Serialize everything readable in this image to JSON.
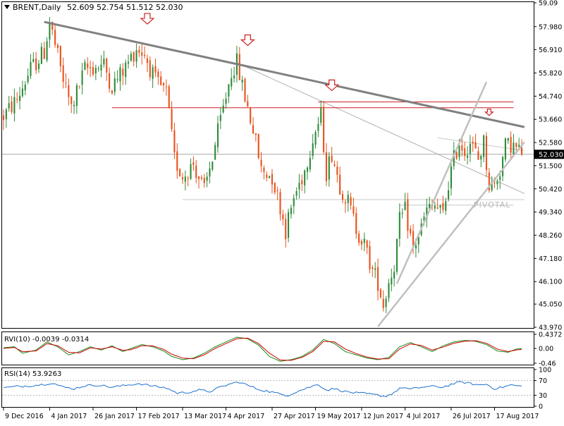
{
  "main_header": {
    "symbol": "BRENT,Daily",
    "ohlc": "52.609 52.754 51.512 52.030"
  },
  "rvi_header": "RVI(10) -0.0039 -0.0314",
  "rsi_header": "RSI(14) 53.9263",
  "price_label": "52.030",
  "pivot_label": "PIVOTAL",
  "colors": {
    "bull": "#2e8b3a",
    "bear": "#e8521c",
    "trendline": "#808080",
    "resistance": "#cc2222",
    "channel": "#c0c0c0",
    "rsi_line": "#1e6fcf",
    "rvi_main": "#1a8c1a",
    "rvi_signal": "#cc0000",
    "arrow": "#cc2222"
  },
  "chart_data": [
    {
      "type": "candlestick",
      "name": "main",
      "title": "BRENT,Daily",
      "ylim": [
        43.97,
        59.09
      ],
      "yticks": [
        59.09,
        57.98,
        56.91,
        55.82,
        54.74,
        53.66,
        52.58,
        51.5,
        50.42,
        49.34,
        48.26,
        47.18,
        46.1,
        45.05,
        43.97
      ],
      "ytick_labels": [
        "59.09",
        "57.980",
        "56.910",
        "55.820",
        "54.740",
        "53.660",
        "52.580",
        "51.500",
        "50.420",
        "49.340",
        "48.260",
        "47.180",
        "46.100",
        "45.050",
        "43.970"
      ],
      "current_price": 52.03,
      "x_labels": [
        "9 Dec 2016",
        "4 Jan 2017",
        "26 Jan 2017",
        "17 Feb 2017",
        "13 Mar 2017",
        "4 Apr 2017",
        "27 Apr 2017",
        "19 May 2017",
        "12 Jun 2017",
        "4 Jul 2017",
        "26 Jul 2017",
        "17 Aug 2017"
      ],
      "x_label_index": [
        0,
        17,
        33,
        49,
        66,
        82,
        99,
        115,
        132,
        148,
        165,
        181
      ],
      "n_bars": 192,
      "anchors": [
        [
          0,
          53.8
        ],
        [
          5,
          54.6
        ],
        [
          10,
          56.0
        ],
        [
          15,
          56.8
        ],
        [
          17,
          58.2
        ],
        [
          22,
          55.5
        ],
        [
          25,
          54.2
        ],
        [
          30,
          56.0
        ],
        [
          37,
          56.2
        ],
        [
          40,
          55.2
        ],
        [
          45,
          56.1
        ],
        [
          49,
          57.0
        ],
        [
          52,
          56.7
        ],
        [
          56,
          55.4
        ],
        [
          60,
          54.9
        ],
        [
          63,
          51.8
        ],
        [
          66,
          51.0
        ],
        [
          70,
          51.6
        ],
        [
          74,
          50.3
        ],
        [
          77,
          51.9
        ],
        [
          80,
          53.6
        ],
        [
          84,
          55.9
        ],
        [
          86,
          56.3
        ],
        [
          88,
          55.2
        ],
        [
          92,
          53.2
        ],
        [
          95,
          51.3
        ],
        [
          99,
          51.0
        ],
        [
          102,
          49.6
        ],
        [
          104,
          48.5
        ],
        [
          107,
          50.0
        ],
        [
          111,
          51.3
        ],
        [
          114,
          52.8
        ],
        [
          117,
          53.8
        ],
        [
          119,
          51.2
        ],
        [
          121,
          52.1
        ],
        [
          124,
          50.6
        ],
        [
          127,
          49.8
        ],
        [
          130,
          48.6
        ],
        [
          133,
          47.8
        ],
        [
          136,
          46.6
        ],
        [
          138,
          46.1
        ],
        [
          140,
          45.0
        ],
        [
          142,
          46.1
        ],
        [
          144,
          46.9
        ],
        [
          146,
          48.9
        ],
        [
          148,
          49.4
        ],
        [
          151,
          47.6
        ],
        [
          154,
          48.6
        ],
        [
          156,
          49.4
        ],
        [
          159,
          49.6
        ],
        [
          162,
          49.2
        ],
        [
          164,
          50.7
        ],
        [
          166,
          51.8
        ],
        [
          168,
          52.6
        ],
        [
          170,
          52.2
        ],
        [
          172,
          52.6
        ],
        [
          175,
          51.8
        ],
        [
          177,
          52.6
        ],
        [
          179,
          50.6
        ],
        [
          181,
          50.6
        ],
        [
          183,
          51.3
        ],
        [
          185,
          52.4
        ],
        [
          187,
          52.5
        ],
        [
          189,
          52.3
        ],
        [
          191,
          52.03
        ]
      ],
      "lines": {
        "main_trendline": {
          "from": [
            15,
            58.2
          ],
          "to": [
            192,
            53.3
          ]
        },
        "thin_trendline": {
          "from": [
            86,
            56.3
          ],
          "to": [
            192,
            50.2
          ]
        },
        "resistance_1": {
          "from": [
            40,
            54.2
          ],
          "to": [
            188,
            54.2
          ]
        },
        "resistance_2": {
          "from": [
            116,
            54.47
          ],
          "to": [
            188,
            54.47
          ]
        },
        "pivot_upper": {
          "from": [
            66,
            49.92
          ],
          "to": [
            192,
            49.92
          ]
        },
        "pivot_lower": {
          "from": [
            146,
            49.66
          ],
          "to": [
            188,
            49.66
          ]
        },
        "channel_upper": {
          "from": [
            145,
            46.0
          ],
          "to": [
            178,
            55.4
          ]
        },
        "channel_lower": {
          "from": [
            138,
            44.0
          ],
          "to": [
            192,
            52.6
          ]
        },
        "channel_mid": {
          "from": [
            160,
            52.8
          ],
          "to": [
            192,
            52.2
          ]
        }
      },
      "markers": [
        {
          "type": "down-arrow",
          "bar": 53,
          "value": 58.2
        },
        {
          "type": "down-arrow",
          "bar": 90,
          "value": 57.2
        },
        {
          "type": "down-arrow",
          "bar": 121,
          "value": 55.1
        },
        {
          "type": "down-arrow",
          "bar": 179,
          "value": 53.9
        }
      ]
    },
    {
      "type": "line",
      "name": "RVI(10)",
      "ylim": [
        -0.46,
        0.4372
      ],
      "ytick_labels": [
        "0.4372",
        "0.00",
        "-0.46"
      ],
      "yticks": [
        0.4372,
        0.0,
        -0.46
      ],
      "series": [
        {
          "name": "main",
          "anchors": [
            [
              0,
              0.02
            ],
            [
              4,
              0.05
            ],
            [
              7,
              -0.15
            ],
            [
              12,
              -0.05
            ],
            [
              16,
              0.2
            ],
            [
              20,
              0.05
            ],
            [
              24,
              -0.2
            ],
            [
              28,
              -0.1
            ],
            [
              32,
              0.05
            ],
            [
              36,
              -0.05
            ],
            [
              40,
              0.08
            ],
            [
              44,
              -0.1
            ],
            [
              47,
              0.0
            ],
            [
              51,
              0.12
            ],
            [
              55,
              0.05
            ],
            [
              59,
              -0.08
            ],
            [
              62,
              -0.25
            ],
            [
              66,
              -0.35
            ],
            [
              70,
              -0.3
            ],
            [
              74,
              -0.15
            ],
            [
              78,
              0.05
            ],
            [
              82,
              0.2
            ],
            [
              86,
              0.35
            ],
            [
              90,
              0.3
            ],
            [
              94,
              0.1
            ],
            [
              98,
              -0.25
            ],
            [
              102,
              -0.4
            ],
            [
              106,
              -0.35
            ],
            [
              110,
              -0.25
            ],
            [
              114,
              -0.05
            ],
            [
              118,
              0.28
            ],
            [
              122,
              0.15
            ],
            [
              126,
              -0.1
            ],
            [
              130,
              -0.2
            ],
            [
              134,
              -0.3
            ],
            [
              138,
              -0.35
            ],
            [
              142,
              -0.28
            ],
            [
              146,
              0.05
            ],
            [
              150,
              0.18
            ],
            [
              154,
              0.05
            ],
            [
              158,
              -0.1
            ],
            [
              162,
              0.08
            ],
            [
              166,
              0.2
            ],
            [
              170,
              0.25
            ],
            [
              174,
              0.22
            ],
            [
              178,
              0.12
            ],
            [
              182,
              -0.08
            ],
            [
              186,
              -0.12
            ],
            [
              189,
              -0.02
            ],
            [
              191,
              -0.004
            ]
          ]
        },
        {
          "name": "signal",
          "anchors": [
            [
              0,
              0.0
            ],
            [
              4,
              0.03
            ],
            [
              7,
              -0.1
            ],
            [
              12,
              -0.08
            ],
            [
              16,
              0.15
            ],
            [
              20,
              0.08
            ],
            [
              24,
              -0.12
            ],
            [
              28,
              -0.14
            ],
            [
              32,
              0.02
            ],
            [
              36,
              -0.02
            ],
            [
              40,
              0.05
            ],
            [
              44,
              -0.06
            ],
            [
              47,
              -0.04
            ],
            [
              51,
              0.08
            ],
            [
              55,
              0.08
            ],
            [
              59,
              -0.03
            ],
            [
              62,
              -0.18
            ],
            [
              66,
              -0.3
            ],
            [
              70,
              -0.32
            ],
            [
              74,
              -0.2
            ],
            [
              78,
              0.0
            ],
            [
              82,
              0.15
            ],
            [
              86,
              0.3
            ],
            [
              90,
              0.32
            ],
            [
              94,
              0.15
            ],
            [
              98,
              -0.15
            ],
            [
              102,
              -0.36
            ],
            [
              106,
              -0.37
            ],
            [
              110,
              -0.28
            ],
            [
              114,
              -0.1
            ],
            [
              118,
              0.22
            ],
            [
              122,
              0.2
            ],
            [
              126,
              -0.02
            ],
            [
              130,
              -0.16
            ],
            [
              134,
              -0.27
            ],
            [
              138,
              -0.33
            ],
            [
              142,
              -0.32
            ],
            [
              146,
              -0.02
            ],
            [
              150,
              0.14
            ],
            [
              154,
              0.09
            ],
            [
              158,
              -0.05
            ],
            [
              162,
              0.04
            ],
            [
              166,
              0.16
            ],
            [
              170,
              0.22
            ],
            [
              174,
              0.24
            ],
            [
              178,
              0.16
            ],
            [
              182,
              -0.02
            ],
            [
              186,
              -0.1
            ],
            [
              189,
              -0.05
            ],
            [
              191,
              -0.031
            ]
          ]
        }
      ]
    },
    {
      "type": "line",
      "name": "RSI(14)",
      "ylim": [
        0,
        100
      ],
      "yticks": [
        100,
        70,
        30,
        0
      ],
      "ytick_labels": [
        "100",
        "70",
        "30",
        "0"
      ],
      "levels": [
        70,
        30
      ],
      "series": [
        {
          "name": "RSI",
          "anchors": [
            [
              0,
              50
            ],
            [
              5,
              54
            ],
            [
              10,
              56
            ],
            [
              15,
              60
            ],
            [
              18,
              64
            ],
            [
              22,
              52
            ],
            [
              26,
              48
            ],
            [
              30,
              56
            ],
            [
              35,
              58
            ],
            [
              40,
              52
            ],
            [
              45,
              57
            ],
            [
              50,
              62
            ],
            [
              55,
              55
            ],
            [
              60,
              50
            ],
            [
              64,
              36
            ],
            [
              68,
              38
            ],
            [
              72,
              44
            ],
            [
              76,
              40
            ],
            [
              80,
              52
            ],
            [
              84,
              62
            ],
            [
              87,
              66
            ],
            [
              90,
              57
            ],
            [
              94,
              46
            ],
            [
              98,
              40
            ],
            [
              102,
              33
            ],
            [
              105,
              30
            ],
            [
              108,
              40
            ],
            [
              112,
              50
            ],
            [
              116,
              60
            ],
            [
              119,
              44
            ],
            [
              122,
              48
            ],
            [
              126,
              40
            ],
            [
              130,
              36
            ],
            [
              134,
              34
            ],
            [
              138,
              30
            ],
            [
              141,
              27
            ],
            [
              144,
              38
            ],
            [
              147,
              52
            ],
            [
              150,
              46
            ],
            [
              154,
              52
            ],
            [
              158,
              54
            ],
            [
              162,
              52
            ],
            [
              166,
              62
            ],
            [
              169,
              66
            ],
            [
              172,
              62
            ],
            [
              175,
              58
            ],
            [
              178,
              60
            ],
            [
              181,
              48
            ],
            [
              184,
              52
            ],
            [
              187,
              58
            ],
            [
              189,
              56
            ],
            [
              191,
              53.9
            ]
          ]
        }
      ]
    }
  ]
}
